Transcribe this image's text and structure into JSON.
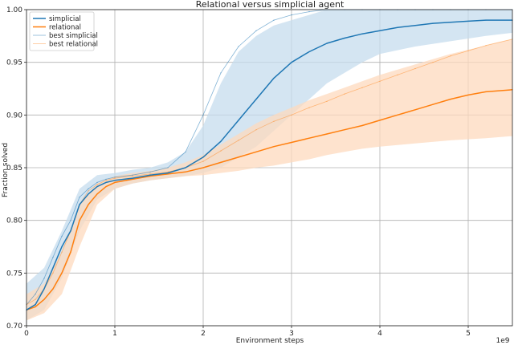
{
  "chart_data": {
    "type": "line",
    "title": "Relational versus simplicial agent",
    "xlabel": "Environment steps",
    "ylabel": "Fraction solved",
    "x_scale_label": "1e9",
    "xlim": [
      0,
      5.5
    ],
    "ylim": [
      0.7,
      1.0
    ],
    "x_ticks": [
      "0",
      "1",
      "2",
      "3",
      "4",
      "5"
    ],
    "y_ticks": [
      "0.70",
      "0.75",
      "0.80",
      "0.85",
      "0.90",
      "0.95",
      "1.00"
    ],
    "grid": true,
    "legend_position": "top-left",
    "colors": {
      "blue": "#1f77b4",
      "orange": "#ff7f0e",
      "blue_band": "#c6dcee",
      "orange_band": "#fdd9bd"
    },
    "series": [
      {
        "name": "simplicial",
        "x": [
          0,
          0.1,
          0.2,
          0.3,
          0.4,
          0.5,
          0.6,
          0.7,
          0.8,
          0.9,
          1.0,
          1.2,
          1.4,
          1.6,
          1.8,
          2.0,
          2.2,
          2.4,
          2.6,
          2.8,
          3.0,
          3.2,
          3.4,
          3.6,
          3.8,
          4.0,
          4.2,
          4.4,
          4.6,
          4.8,
          5.0,
          5.2,
          5.5
        ],
        "y": [
          0.715,
          0.72,
          0.735,
          0.755,
          0.775,
          0.79,
          0.815,
          0.825,
          0.832,
          0.836,
          0.838,
          0.84,
          0.843,
          0.845,
          0.85,
          0.86,
          0.875,
          0.895,
          0.915,
          0.935,
          0.95,
          0.96,
          0.968,
          0.973,
          0.977,
          0.98,
          0.983,
          0.985,
          0.987,
          0.988,
          0.989,
          0.99,
          0.99
        ]
      },
      {
        "name": "relational",
        "x": [
          0,
          0.1,
          0.2,
          0.3,
          0.4,
          0.5,
          0.6,
          0.7,
          0.8,
          0.9,
          1.0,
          1.2,
          1.4,
          1.6,
          1.8,
          2.0,
          2.2,
          2.4,
          2.6,
          2.8,
          3.0,
          3.2,
          3.4,
          3.6,
          3.8,
          4.0,
          4.2,
          4.4,
          4.6,
          4.8,
          5.0,
          5.2,
          5.5
        ],
        "y": [
          0.715,
          0.718,
          0.725,
          0.735,
          0.75,
          0.77,
          0.8,
          0.815,
          0.825,
          0.832,
          0.836,
          0.839,
          0.842,
          0.844,
          0.846,
          0.85,
          0.855,
          0.86,
          0.865,
          0.87,
          0.874,
          0.878,
          0.882,
          0.886,
          0.89,
          0.895,
          0.9,
          0.905,
          0.91,
          0.915,
          0.919,
          0.922,
          0.924
        ]
      },
      {
        "name": "best simplicial",
        "x": [
          0,
          0.1,
          0.2,
          0.3,
          0.4,
          0.5,
          0.6,
          0.7,
          0.8,
          0.9,
          1.0,
          1.2,
          1.4,
          1.6,
          1.8,
          2.0,
          2.2,
          2.4,
          2.6,
          2.8,
          3.0,
          3.2,
          3.4,
          3.6,
          3.8,
          4.0,
          4.2,
          4.4,
          4.6,
          4.8,
          5.0,
          5.2,
          5.5
        ],
        "y": [
          0.72,
          0.73,
          0.745,
          0.765,
          0.785,
          0.8,
          0.822,
          0.83,
          0.836,
          0.839,
          0.841,
          0.843,
          0.846,
          0.85,
          0.865,
          0.9,
          0.94,
          0.965,
          0.98,
          0.99,
          0.995,
          0.998,
          1.0,
          1.0,
          1.0,
          1.0,
          1.0,
          1.0,
          1.0,
          1.0,
          1.0,
          1.0,
          1.0
        ]
      },
      {
        "name": "best relational",
        "x": [
          0,
          0.1,
          0.2,
          0.3,
          0.4,
          0.5,
          0.6,
          0.7,
          0.8,
          0.9,
          1.0,
          1.2,
          1.4,
          1.6,
          1.8,
          2.0,
          2.2,
          2.4,
          2.6,
          2.8,
          3.0,
          3.2,
          3.4,
          3.6,
          3.8,
          4.0,
          4.2,
          4.4,
          4.6,
          4.8,
          5.0,
          5.2,
          5.5
        ],
        "y": [
          0.72,
          0.725,
          0.735,
          0.75,
          0.77,
          0.79,
          0.815,
          0.828,
          0.834,
          0.838,
          0.84,
          0.842,
          0.844,
          0.846,
          0.85,
          0.856,
          0.866,
          0.876,
          0.886,
          0.894,
          0.9,
          0.907,
          0.913,
          0.92,
          0.926,
          0.932,
          0.938,
          0.944,
          0.95,
          0.956,
          0.961,
          0.966,
          0.972
        ]
      }
    ],
    "bands": [
      {
        "series": "simplicial",
        "x": [
          0,
          0.2,
          0.4,
          0.6,
          0.8,
          1.0,
          1.2,
          1.4,
          1.6,
          1.8,
          2.0,
          2.2,
          2.4,
          2.6,
          2.8,
          3.0,
          3.2,
          3.4,
          3.6,
          3.8,
          4.0,
          4.4,
          4.8,
          5.2,
          5.5
        ],
        "low": [
          0.705,
          0.715,
          0.745,
          0.79,
          0.82,
          0.83,
          0.835,
          0.838,
          0.84,
          0.842,
          0.845,
          0.85,
          0.86,
          0.87,
          0.885,
          0.9,
          0.915,
          0.93,
          0.94,
          0.95,
          0.958,
          0.965,
          0.97,
          0.975,
          0.978
        ],
        "high": [
          0.74,
          0.755,
          0.79,
          0.83,
          0.843,
          0.845,
          0.848,
          0.85,
          0.855,
          0.865,
          0.89,
          0.93,
          0.96,
          0.975,
          0.985,
          0.99,
          0.995,
          1.0,
          1.0,
          1.0,
          1.0,
          1.0,
          1.0,
          1.0,
          1.0
        ]
      },
      {
        "series": "relational",
        "x": [
          0,
          0.2,
          0.4,
          0.6,
          0.8,
          1.0,
          1.2,
          1.4,
          1.6,
          1.8,
          2.0,
          2.2,
          2.4,
          2.6,
          2.8,
          3.0,
          3.2,
          3.4,
          3.6,
          3.8,
          4.0,
          4.4,
          4.8,
          5.2,
          5.5
        ],
        "low": [
          0.705,
          0.712,
          0.73,
          0.775,
          0.815,
          0.83,
          0.835,
          0.838,
          0.84,
          0.842,
          0.843,
          0.845,
          0.847,
          0.85,
          0.852,
          0.855,
          0.858,
          0.862,
          0.865,
          0.868,
          0.87,
          0.873,
          0.876,
          0.878,
          0.88
        ],
        "high": [
          0.73,
          0.74,
          0.77,
          0.815,
          0.835,
          0.842,
          0.845,
          0.847,
          0.85,
          0.855,
          0.862,
          0.872,
          0.882,
          0.892,
          0.9,
          0.907,
          0.914,
          0.92,
          0.926,
          0.932,
          0.938,
          0.948,
          0.958,
          0.966,
          0.972
        ]
      }
    ]
  }
}
